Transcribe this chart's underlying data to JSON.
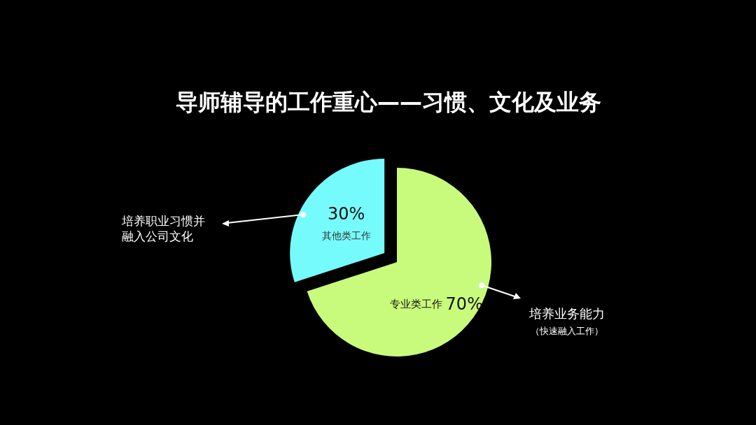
{
  "chart_data": {
    "type": "pie",
    "title": "导师辅导的工作重心——习惯、文化及业务",
    "categories": [
      "专业类工作",
      "其他类工作"
    ],
    "values": [
      70,
      30
    ],
    "colors": [
      "#c8fb7c",
      "#76fbfc"
    ],
    "value_labels": [
      "70%",
      "30%"
    ],
    "annotations": [
      "培养业务能力",
      "（快速融入工作）",
      "培养职业习惯并融入公司文化"
    ]
  }
}
